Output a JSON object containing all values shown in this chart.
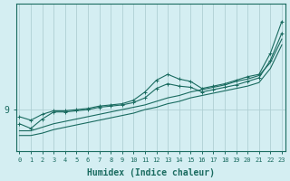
{
  "xlabel": "Humidex (Indice chaleur)",
  "background_color": "#d4eef2",
  "line_color": "#1a6b60",
  "grid_color": "#b0cfd4",
  "x_values": [
    0,
    1,
    2,
    3,
    4,
    5,
    6,
    7,
    8,
    9,
    10,
    11,
    12,
    13,
    14,
    15,
    16,
    17,
    18,
    19,
    20,
    21,
    22,
    23
  ],
  "series_with_markers": [
    [
      8.4,
      8.1,
      8.6,
      8.9,
      8.9,
      9.0,
      9.1,
      9.3,
      9.4,
      9.5,
      9.8,
      10.5,
      11.5,
      12.0,
      11.6,
      11.4,
      10.8,
      11.0,
      11.2,
      11.5,
      11.8,
      12.0,
      13.8,
      16.5
    ],
    [
      7.8,
      7.4,
      8.2,
      8.8,
      8.8,
      8.9,
      9.0,
      9.2,
      9.3,
      9.4,
      9.6,
      10.0,
      10.8,
      11.2,
      11.0,
      10.9,
      10.5,
      10.7,
      10.9,
      11.1,
      11.4,
      11.7,
      13.2,
      15.5
    ]
  ],
  "series_smooth": [
    [
      7.2,
      7.2,
      7.5,
      7.8,
      8.0,
      8.2,
      8.4,
      8.6,
      8.8,
      9.0,
      9.2,
      9.4,
      9.7,
      10.0,
      10.2,
      10.5,
      10.7,
      10.9,
      11.1,
      11.4,
      11.6,
      11.9,
      13.0,
      15.0
    ],
    [
      6.8,
      6.8,
      7.0,
      7.3,
      7.5,
      7.7,
      7.9,
      8.1,
      8.3,
      8.5,
      8.7,
      9.0,
      9.2,
      9.5,
      9.7,
      10.0,
      10.2,
      10.4,
      10.6,
      10.8,
      11.0,
      11.3,
      12.5,
      14.5
    ]
  ],
  "ytick_label": "9",
  "ytick_value": 9.0,
  "xlim": [
    -0.3,
    23.3
  ],
  "ylim": [
    5.5,
    18.0
  ],
  "xtick_labels": [
    "0",
    "1",
    "2",
    "3",
    "4",
    "5",
    "6",
    "7",
    "8",
    "9",
    "10",
    "11",
    "12",
    "13",
    "14",
    "15",
    "16",
    "17",
    "18",
    "19",
    "20",
    "21",
    "22",
    "23"
  ]
}
